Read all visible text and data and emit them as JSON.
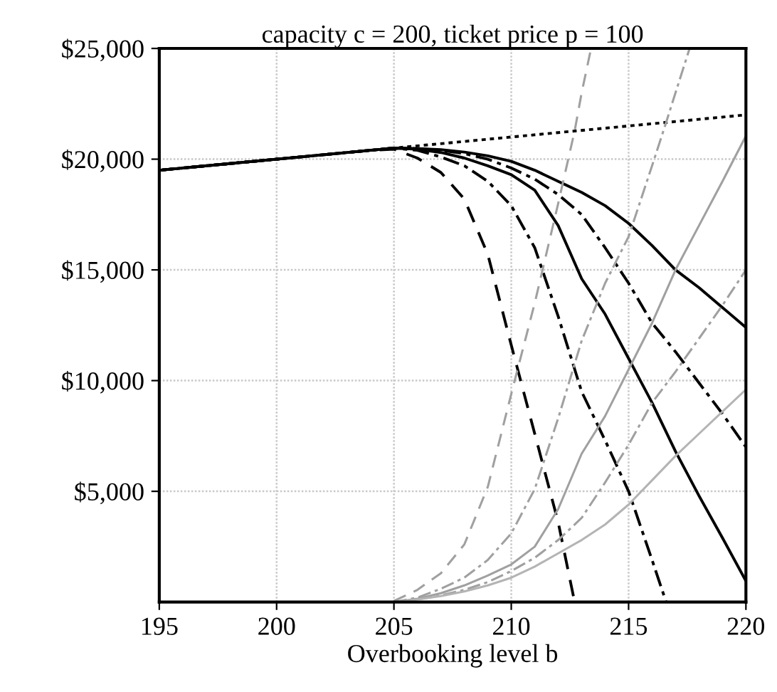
{
  "chart_data": {
    "type": "line",
    "title": "capacity c = 200, ticket price p = 100",
    "xlabel": "Overbooking level b",
    "xlim": [
      195,
      220
    ],
    "xticks": [
      195,
      200,
      205,
      210,
      215,
      220
    ],
    "ylim": [
      0,
      25000
    ],
    "yticks": [
      {
        "value": 5000,
        "label": "$5,000"
      },
      {
        "value": 10000,
        "label": "$10,000"
      },
      {
        "value": 15000,
        "label": "$15,000"
      },
      {
        "value": 20000,
        "label": "$20,000"
      },
      {
        "value": 25000,
        "label": "$25,000"
      }
    ],
    "grid": true,
    "marker": "none",
    "series": [
      {
        "color": "#000000",
        "line_style": "dotted",
        "x": [
          195,
          220
        ],
        "values": [
          19500,
          22000
        ]
      },
      {
        "color": "#000000",
        "line_style": "dashed",
        "x": [
          195,
          204,
          205,
          206,
          207,
          208,
          209,
          210,
          211,
          212,
          212.7
        ],
        "values": [
          19500,
          20400,
          20450,
          20050,
          19400,
          18200,
          15700,
          11600,
          7600,
          3600,
          0
        ]
      },
      {
        "color": "#000000",
        "line_style": "dashdot",
        "x": [
          195,
          204,
          205,
          206,
          207,
          208,
          209,
          210,
          211,
          212,
          213,
          214,
          215,
          216,
          216.6
        ],
        "values": [
          19500,
          20400,
          20500,
          20400,
          20100,
          19700,
          19000,
          17900,
          16000,
          12900,
          9500,
          7300,
          5000,
          1900,
          0
        ]
      },
      {
        "color": "#000000",
        "line_style": "solid",
        "x": [
          195,
          204,
          205,
          206,
          207,
          208,
          209,
          210,
          211,
          212,
          213,
          214,
          215,
          216,
          217,
          218,
          219,
          220
        ],
        "values": [
          19500,
          20400,
          20500,
          20450,
          20300,
          20050,
          19700,
          19300,
          18600,
          17000,
          14600,
          13000,
          11000,
          9000,
          6800,
          4800,
          2900,
          950
        ]
      },
      {
        "color": "#000000",
        "line_style": "dashdot",
        "x": [
          195,
          204,
          205,
          206,
          207,
          208,
          209,
          210,
          211,
          212,
          213,
          214,
          215,
          216,
          217,
          218,
          219,
          220
        ],
        "values": [
          19500,
          20400,
          20500,
          20480,
          20400,
          20250,
          20000,
          19600,
          19100,
          18400,
          17500,
          16000,
          14400,
          12600,
          11300,
          9900,
          8500,
          7000
        ]
      },
      {
        "color": "#000000",
        "line_style": "solid",
        "x": [
          195,
          204,
          205,
          206,
          207,
          208,
          209,
          210,
          211,
          212,
          213,
          214,
          215,
          216,
          217,
          218,
          219,
          220
        ],
        "values": [
          19500,
          20400,
          20500,
          20480,
          20430,
          20320,
          20150,
          19900,
          19500,
          19000,
          18500,
          17900,
          17100,
          16100,
          15000,
          14200,
          13300,
          12400
        ]
      },
      {
        "color": "#a0a0a0",
        "line_style": "dashed",
        "x": [
          205,
          206,
          207,
          208,
          209,
          210,
          211,
          212,
          212.7,
          213,
          213.4
        ],
        "values": [
          50,
          550,
          1300,
          2600,
          5200,
          9400,
          13500,
          18000,
          21270,
          23000,
          25000
        ]
      },
      {
        "color": "#a0a0a0",
        "line_style": "dashdot",
        "x": [
          205,
          206,
          207,
          208,
          209,
          210,
          211,
          212,
          213,
          214,
          215,
          216,
          216.6,
          217,
          217.6
        ],
        "values": [
          0,
          200,
          600,
          1100,
          1900,
          3100,
          5100,
          8300,
          11800,
          14400,
          16500,
          19700,
          21660,
          23000,
          25000
        ]
      },
      {
        "color": "#a0a0a0",
        "line_style": "solid",
        "x": [
          205,
          206,
          207,
          208,
          209,
          210,
          211,
          212,
          213,
          214,
          215,
          216,
          217,
          218,
          219,
          220
        ],
        "values": [
          0,
          150,
          400,
          750,
          1200,
          1700,
          2500,
          4200,
          6700,
          8400,
          10500,
          12600,
          15000,
          17000,
          19000,
          21050
        ]
      },
      {
        "color": "#a0a0a0",
        "line_style": "dashdot",
        "x": [
          205,
          206,
          207,
          208,
          209,
          210,
          211,
          212,
          213,
          214,
          215,
          216,
          217,
          218,
          219,
          220
        ],
        "values": [
          0,
          120,
          300,
          550,
          900,
          1400,
          2000,
          2800,
          3800,
          5400,
          7100,
          9000,
          10400,
          11900,
          13400,
          15000
        ]
      },
      {
        "color": "#b4b4b4",
        "line_style": "solid",
        "x": [
          205,
          206,
          207,
          208,
          209,
          210,
          211,
          212,
          213,
          214,
          215,
          216,
          217,
          218,
          219,
          220
        ],
        "values": [
          0,
          120,
          270,
          480,
          750,
          1100,
          1600,
          2200,
          2800,
          3500,
          4400,
          5500,
          6600,
          7600,
          8600,
          9600
        ]
      }
    ]
  }
}
